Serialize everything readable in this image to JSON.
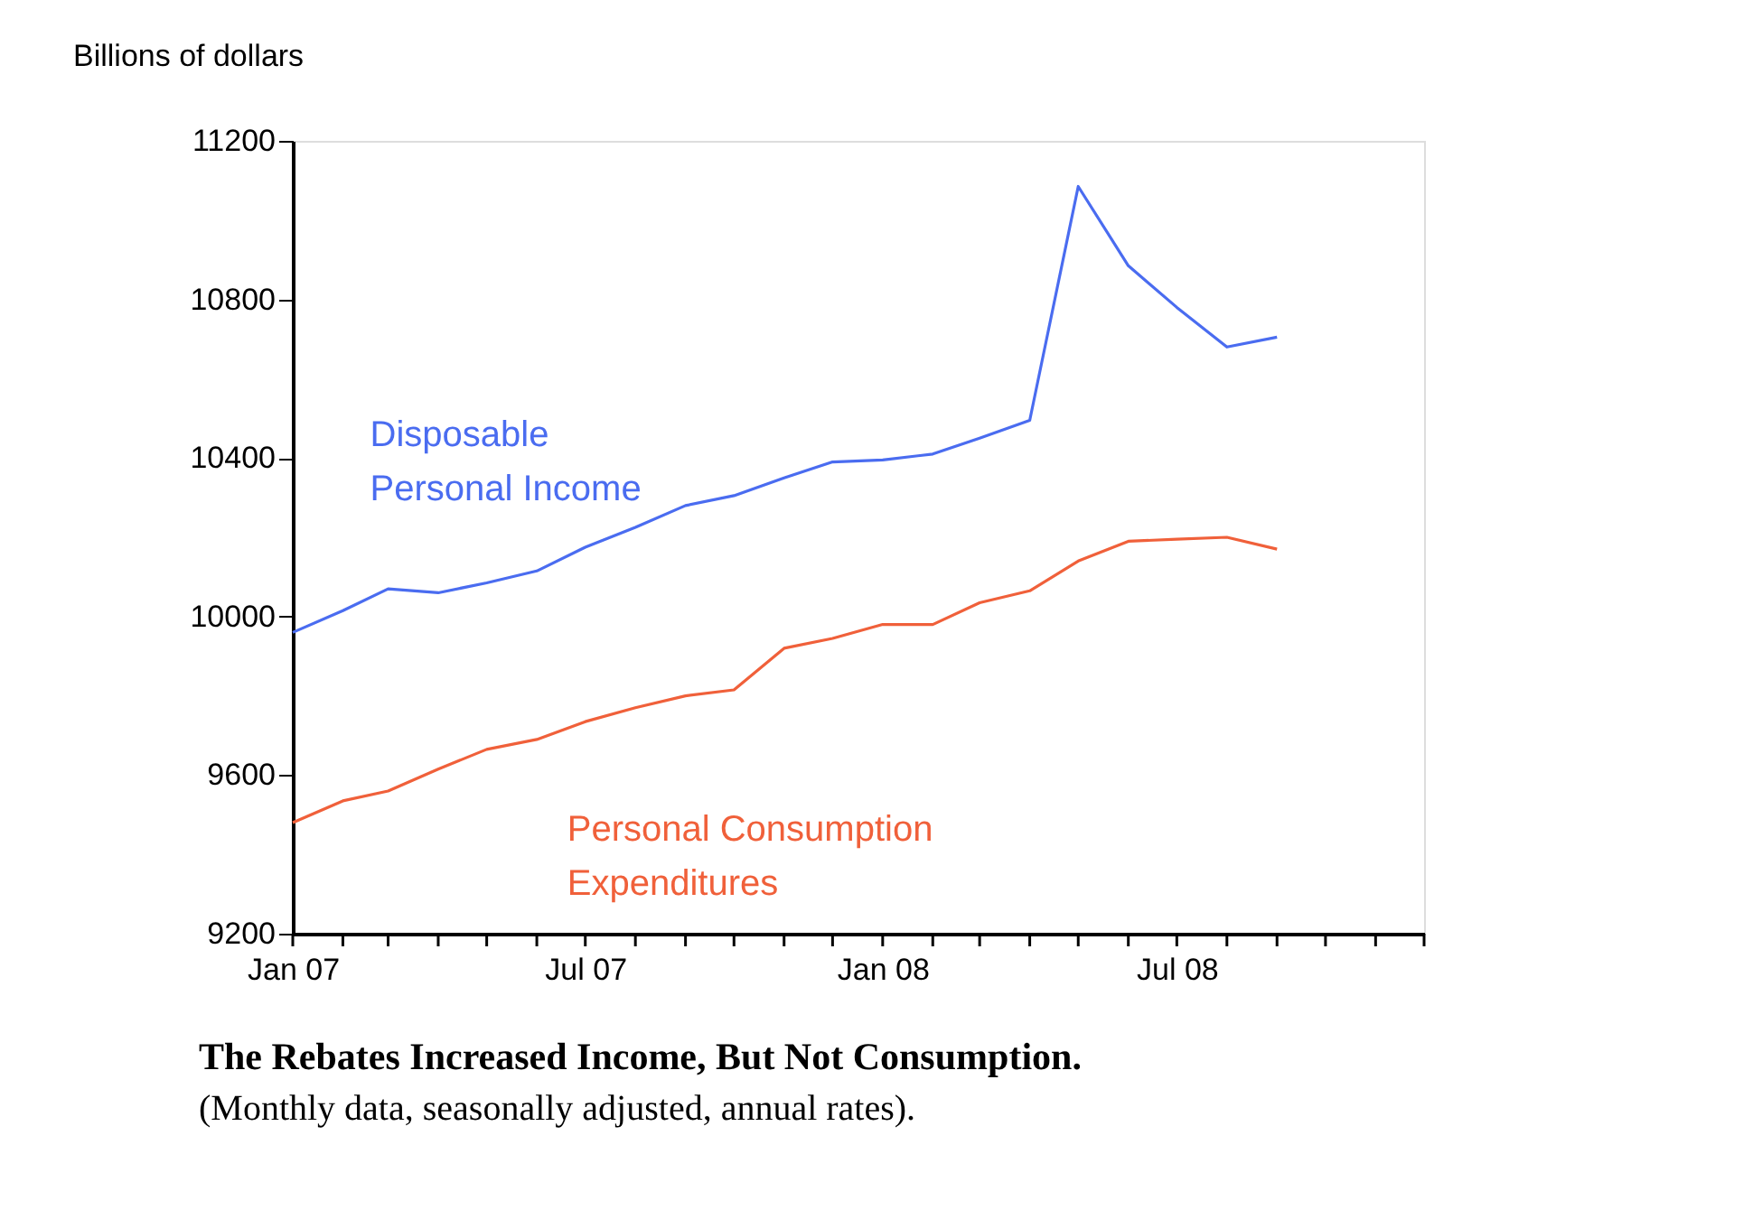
{
  "chart_data": {
    "type": "line",
    "title": "The Rebates Increased Income, But Not Consumption.",
    "subtitle": "(Monthly data, seasonally adjusted, annual rates).",
    "ylabel": "Billions of dollars",
    "x": [
      "2007-01",
      "2007-02",
      "2007-03",
      "2007-04",
      "2007-05",
      "2007-06",
      "2007-07",
      "2007-08",
      "2007-09",
      "2007-10",
      "2007-11",
      "2007-12",
      "2008-01",
      "2008-02",
      "2008-03",
      "2008-04",
      "2008-05",
      "2008-06",
      "2008-07",
      "2008-08",
      "2008-09"
    ],
    "series": [
      {
        "name": "Disposable\nPersonal Income",
        "color": "#4a6cf0",
        "values": [
          9960,
          10015,
          10070,
          10060,
          10085,
          10115,
          10175,
          10225,
          10280,
          10305,
          10350,
          10390,
          10395,
          10410,
          10450,
          10495,
          11085,
          10885,
          10780,
          10680,
          10705
        ]
      },
      {
        "name": "Personal Consumption\nExpenditures",
        "color": "#f0603a",
        "values": [
          9480,
          9535,
          9560,
          9615,
          9665,
          9690,
          9735,
          9770,
          9800,
          9815,
          9920,
          9945,
          9980,
          9980,
          10035,
          10065,
          10140,
          10190,
          10195,
          10200,
          10170
        ]
      }
    ],
    "xlim": [
      "2007-01",
      "2008-12"
    ],
    "xticks": [
      {
        "value": "2007-01",
        "label": "Jan 07"
      },
      {
        "value": "2007-02",
        "label": null
      },
      {
        "value": "2007-03",
        "label": null
      },
      {
        "value": "2007-04",
        "label": null
      },
      {
        "value": "2007-05",
        "label": null
      },
      {
        "value": "2007-06",
        "label": null
      },
      {
        "value": "2007-07",
        "label": "Jul 07"
      },
      {
        "value": "2007-08",
        "label": null
      },
      {
        "value": "2007-09",
        "label": null
      },
      {
        "value": "2007-10",
        "label": null
      },
      {
        "value": "2007-11",
        "label": null
      },
      {
        "value": "2007-12",
        "label": null
      },
      {
        "value": "2008-01",
        "label": "Jan 08"
      },
      {
        "value": "2008-02",
        "label": null
      },
      {
        "value": "2008-03",
        "label": null
      },
      {
        "value": "2008-04",
        "label": null
      },
      {
        "value": "2008-05",
        "label": null
      },
      {
        "value": "2008-06",
        "label": null
      },
      {
        "value": "2008-07",
        "label": "Jul 08"
      },
      {
        "value": "2008-08",
        "label": null
      },
      {
        "value": "2008-09",
        "label": null
      },
      {
        "value": "2008-10",
        "label": null
      },
      {
        "value": "2008-11",
        "label": null
      },
      {
        "value": "2008-12",
        "label": null
      }
    ],
    "ylim": [
      9200,
      11200
    ],
    "yticks": [
      9200,
      9600,
      10000,
      10400,
      10800,
      11200
    ],
    "grid": false,
    "legend": false,
    "marker": "none",
    "line_style": "solid"
  }
}
